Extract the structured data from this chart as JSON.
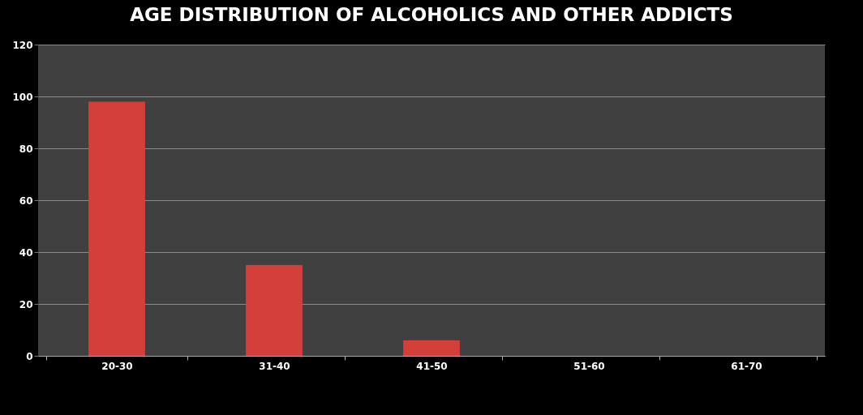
{
  "chart_data": {
    "type": "bar",
    "title": "AGE DISTRIBUTION OF ALCOHOLICS AND OTHER ADDICTS",
    "categories": [
      "20-30",
      "31-40",
      "41-50",
      "51-60",
      "61-70"
    ],
    "values": [
      98,
      35,
      6,
      0,
      0
    ],
    "color": "#d43f3a",
    "ylim": [
      0,
      120
    ],
    "yticks": [
      0,
      20,
      40,
      60,
      80,
      100,
      120
    ],
    "grid": "y"
  }
}
